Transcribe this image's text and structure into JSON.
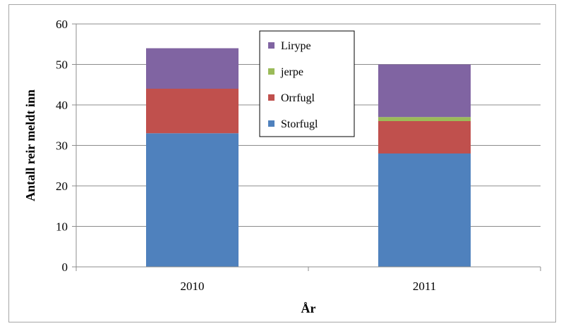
{
  "chart_data": {
    "type": "bar",
    "stacked": true,
    "categories": [
      "2010",
      "2011"
    ],
    "series": [
      {
        "name": "Storfugl",
        "values": [
          33,
          28
        ],
        "color": "#4f81bd"
      },
      {
        "name": "Orrfugl",
        "values": [
          11,
          8
        ],
        "color": "#c0504d"
      },
      {
        "name": "jerpe",
        "values": [
          0,
          1
        ],
        "color": "#9bbb59"
      },
      {
        "name": "Lirype",
        "values": [
          10,
          13
        ],
        "color": "#8064a2"
      }
    ],
    "legend_order": [
      "Lirype",
      "jerpe",
      "Orrfugl",
      "Storfugl"
    ],
    "xlabel": "År",
    "ylabel": "Antall reir meldt inn",
    "ylim": [
      0,
      60
    ],
    "yticks": [
      "0",
      "10",
      "20",
      "30",
      "40",
      "50",
      "60"
    ],
    "grid": true,
    "legend_position": "top-center"
  }
}
